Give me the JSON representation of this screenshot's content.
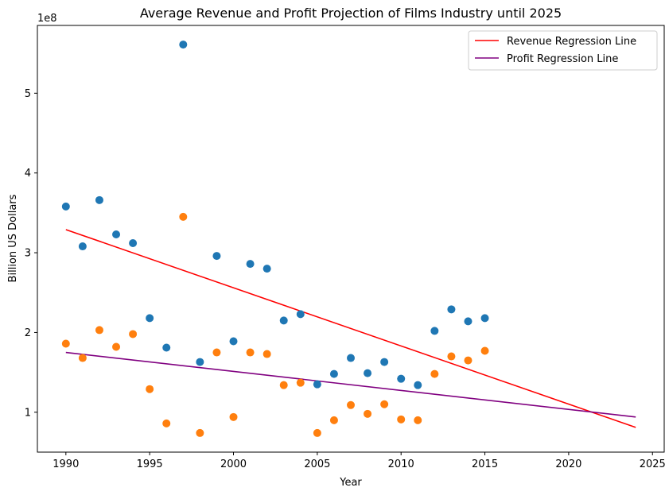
{
  "chart_data": {
    "type": "scatter",
    "title": "Average Revenue and Profit Projection of Films Industry until 2025",
    "xlabel": "Year",
    "ylabel": "Billion US Dollars",
    "y_offset_label": "1e8",
    "xlim": [
      1988.3,
      2025.7
    ],
    "ylim": [
      0.5,
      5.85
    ],
    "x_ticks": [
      1990,
      1995,
      2000,
      2005,
      2010,
      2015,
      2020,
      2025
    ],
    "y_ticks": [
      1,
      2,
      3,
      4,
      5
    ],
    "grid": false,
    "legend_position": "top-right",
    "series": [
      {
        "kind": "scatter",
        "color": "#1f77b4",
        "points": [
          [
            1990,
            3.58
          ],
          [
            1991,
            3.08
          ],
          [
            1992,
            3.66
          ],
          [
            1993,
            3.23
          ],
          [
            1994,
            3.12
          ],
          [
            1995,
            2.18
          ],
          [
            1996,
            1.81
          ],
          [
            1997,
            5.61
          ],
          [
            1998,
            1.63
          ],
          [
            1999,
            2.96
          ],
          [
            2000,
            1.89
          ],
          [
            2001,
            2.86
          ],
          [
            2002,
            2.8
          ],
          [
            2003,
            2.15
          ],
          [
            2004,
            2.23
          ],
          [
            2005,
            1.35
          ],
          [
            2006,
            1.48
          ],
          [
            2007,
            1.68
          ],
          [
            2008,
            1.49
          ],
          [
            2009,
            1.63
          ],
          [
            2010,
            1.42
          ],
          [
            2011,
            1.34
          ],
          [
            2012,
            2.02
          ],
          [
            2013,
            2.29
          ],
          [
            2014,
            2.14
          ],
          [
            2015,
            2.18
          ]
        ]
      },
      {
        "kind": "scatter",
        "color": "#ff7f0e",
        "points": [
          [
            1990,
            1.86
          ],
          [
            1991,
            1.68
          ],
          [
            1992,
            2.03
          ],
          [
            1993,
            1.82
          ],
          [
            1994,
            1.98
          ],
          [
            1995,
            1.29
          ],
          [
            1996,
            0.86
          ],
          [
            1997,
            3.45
          ],
          [
            1998,
            0.74
          ],
          [
            1999,
            1.75
          ],
          [
            2000,
            0.94
          ],
          [
            2001,
            1.75
          ],
          [
            2002,
            1.73
          ],
          [
            2003,
            1.34
          ],
          [
            2004,
            1.37
          ],
          [
            2005,
            0.74
          ],
          [
            2006,
            0.9
          ],
          [
            2007,
            1.09
          ],
          [
            2008,
            0.98
          ],
          [
            2009,
            1.1
          ],
          [
            2010,
            0.91
          ],
          [
            2011,
            0.9
          ],
          [
            2012,
            1.48
          ],
          [
            2013,
            1.7
          ],
          [
            2014,
            1.65
          ],
          [
            2015,
            1.77
          ]
        ]
      },
      {
        "kind": "line",
        "name": "Revenue Regression Line",
        "color": "#ff0000",
        "points": [
          [
            1990,
            3.29
          ],
          [
            2024,
            0.81
          ]
        ]
      },
      {
        "kind": "line",
        "name": "Profit Regression Line",
        "color": "#800080",
        "points": [
          [
            1990,
            1.75
          ],
          [
            2024,
            0.94
          ]
        ]
      }
    ]
  }
}
